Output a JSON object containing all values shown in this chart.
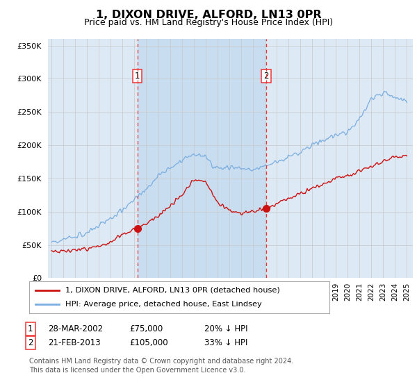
{
  "title": "1, DIXON DRIVE, ALFORD, LN13 0PR",
  "subtitle": "Price paid vs. HM Land Registry's House Price Index (HPI)",
  "legend_line1": "1, DIXON DRIVE, ALFORD, LN13 0PR (detached house)",
  "legend_line2": "HPI: Average price, detached house, East Lindsey",
  "purchase1_date": "28-MAR-2002",
  "purchase1_price": 75000,
  "purchase1_hpi": "20% ↓ HPI",
  "purchase2_date": "21-FEB-2013",
  "purchase2_price": 105000,
  "purchase2_hpi": "33% ↓ HPI",
  "footnote1": "Contains HM Land Registry data © Crown copyright and database right 2024.",
  "footnote2": "This data is licensed under the Open Government Licence v3.0.",
  "hpi_color": "#7aade0",
  "price_color": "#cc1111",
  "marker_color": "#cc1111",
  "vline_color": "#ee3333",
  "bg_color": "#dde9f5",
  "band_color": "#c8ddf0",
  "ylim": [
    0,
    360000
  ],
  "yticks": [
    0,
    50000,
    100000,
    150000,
    200000,
    250000,
    300000,
    350000
  ],
  "purchase1_year": 2002.24,
  "purchase2_year": 2013.12
}
